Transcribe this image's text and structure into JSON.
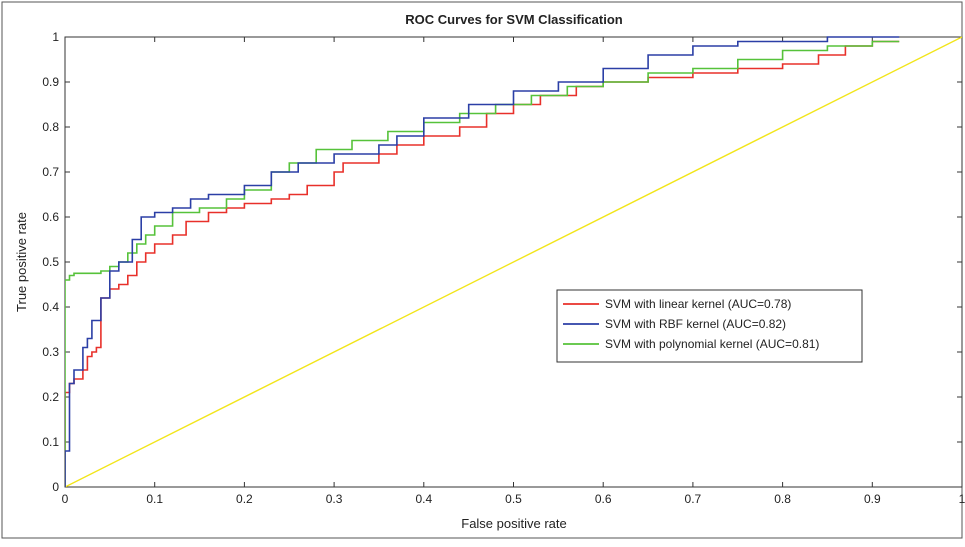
{
  "chart_data": {
    "type": "line",
    "title": "ROC Curves for  SVM Classification",
    "xlabel": "False positive rate",
    "ylabel": "True positive rate",
    "xlim": [
      0,
      1
    ],
    "ylim": [
      0,
      1
    ],
    "xticks": [
      0,
      0.1,
      0.2,
      0.3,
      0.4,
      0.5,
      0.6,
      0.7,
      0.8,
      0.9,
      1
    ],
    "yticks": [
      0,
      0.1,
      0.2,
      0.3,
      0.4,
      0.5,
      0.6,
      0.7,
      0.8,
      0.9,
      1
    ],
    "xtick_labels": [
      "0",
      "0.1",
      "0.2",
      "0.3",
      "0.4",
      "0.5",
      "0.6",
      "0.7",
      "0.8",
      "0.9",
      "1"
    ],
    "ytick_labels": [
      "0",
      "0.1",
      "0.2",
      "0.3",
      "0.4",
      "0.5",
      "0.6",
      "0.7",
      "0.8",
      "0.9",
      "1"
    ],
    "grid": false,
    "legend_position": "center-right",
    "series": [
      {
        "name": "SVM with linear kernel (AUC=0.78)",
        "color": "#e8302a",
        "x": [
          0,
          0,
          0.005,
          0.005,
          0.01,
          0.01,
          0.02,
          0.02,
          0.025,
          0.025,
          0.03,
          0.03,
          0.035,
          0.035,
          0.04,
          0.04,
          0.05,
          0.05,
          0.06,
          0.06,
          0.07,
          0.07,
          0.08,
          0.08,
          0.09,
          0.09,
          0.1,
          0.1,
          0.12,
          0.12,
          0.135,
          0.135,
          0.16,
          0.16,
          0.18,
          0.18,
          0.2,
          0.2,
          0.23,
          0.23,
          0.25,
          0.25,
          0.27,
          0.27,
          0.3,
          0.3,
          0.31,
          0.31,
          0.35,
          0.35,
          0.37,
          0.37,
          0.4,
          0.4,
          0.44,
          0.44,
          0.47,
          0.47,
          0.5,
          0.5,
          0.53,
          0.53,
          0.57,
          0.57,
          0.6,
          0.6,
          0.65,
          0.65,
          0.7,
          0.7,
          0.75,
          0.75,
          0.8,
          0.8,
          0.84,
          0.84,
          0.87,
          0.87,
          0.9,
          0.9,
          0.93
        ],
        "y": [
          0,
          0.21,
          0.21,
          0.23,
          0.23,
          0.24,
          0.24,
          0.26,
          0.26,
          0.29,
          0.29,
          0.3,
          0.3,
          0.31,
          0.31,
          0.42,
          0.42,
          0.44,
          0.44,
          0.45,
          0.45,
          0.47,
          0.47,
          0.5,
          0.5,
          0.52,
          0.52,
          0.54,
          0.54,
          0.56,
          0.56,
          0.59,
          0.59,
          0.61,
          0.61,
          0.62,
          0.62,
          0.63,
          0.63,
          0.64,
          0.64,
          0.65,
          0.65,
          0.67,
          0.67,
          0.7,
          0.7,
          0.72,
          0.72,
          0.74,
          0.74,
          0.76,
          0.76,
          0.78,
          0.78,
          0.8,
          0.8,
          0.83,
          0.83,
          0.85,
          0.85,
          0.87,
          0.87,
          0.89,
          0.89,
          0.9,
          0.9,
          0.91,
          0.91,
          0.92,
          0.92,
          0.93,
          0.93,
          0.94,
          0.94,
          0.96,
          0.96,
          0.98,
          0.98,
          0.99,
          0.99
        ]
      },
      {
        "name": "SVM with RBF kernel (AUC=0.82)",
        "color": "#2b3fa6",
        "x": [
          0,
          0,
          0.005,
          0.005,
          0.01,
          0.01,
          0.02,
          0.02,
          0.025,
          0.025,
          0.03,
          0.03,
          0.04,
          0.04,
          0.05,
          0.05,
          0.06,
          0.06,
          0.075,
          0.075,
          0.085,
          0.085,
          0.1,
          0.1,
          0.12,
          0.12,
          0.14,
          0.14,
          0.16,
          0.16,
          0.2,
          0.2,
          0.23,
          0.23,
          0.26,
          0.26,
          0.3,
          0.3,
          0.35,
          0.35,
          0.37,
          0.37,
          0.4,
          0.4,
          0.45,
          0.45,
          0.5,
          0.5,
          0.55,
          0.55,
          0.6,
          0.6,
          0.65,
          0.65,
          0.7,
          0.7,
          0.75,
          0.75,
          0.8,
          0.8,
          0.85,
          0.85,
          0.88,
          0.88,
          0.93
        ],
        "y": [
          0,
          0.08,
          0.08,
          0.23,
          0.23,
          0.26,
          0.26,
          0.31,
          0.31,
          0.33,
          0.33,
          0.37,
          0.37,
          0.42,
          0.42,
          0.48,
          0.48,
          0.5,
          0.5,
          0.55,
          0.55,
          0.6,
          0.6,
          0.61,
          0.61,
          0.62,
          0.62,
          0.64,
          0.64,
          0.65,
          0.65,
          0.67,
          0.67,
          0.7,
          0.7,
          0.72,
          0.72,
          0.74,
          0.74,
          0.76,
          0.76,
          0.78,
          0.78,
          0.82,
          0.82,
          0.85,
          0.85,
          0.88,
          0.88,
          0.9,
          0.9,
          0.93,
          0.93,
          0.96,
          0.96,
          0.98,
          0.98,
          0.99,
          0.99,
          0.99,
          0.99,
          1.0,
          1.0,
          1.0,
          1.0
        ]
      },
      {
        "name": "SVM with polynomial kernel (AUC=0.81)",
        "color": "#56c23a",
        "x": [
          0,
          0,
          0.005,
          0.005,
          0.01,
          0.01,
          0.04,
          0.04,
          0.05,
          0.05,
          0.06,
          0.06,
          0.07,
          0.07,
          0.08,
          0.08,
          0.09,
          0.09,
          0.1,
          0.1,
          0.12,
          0.12,
          0.15,
          0.15,
          0.18,
          0.18,
          0.2,
          0.2,
          0.23,
          0.23,
          0.25,
          0.25,
          0.28,
          0.28,
          0.32,
          0.32,
          0.36,
          0.36,
          0.4,
          0.4,
          0.44,
          0.44,
          0.48,
          0.48,
          0.52,
          0.52,
          0.56,
          0.56,
          0.6,
          0.6,
          0.65,
          0.65,
          0.7,
          0.7,
          0.75,
          0.75,
          0.8,
          0.8,
          0.85,
          0.85,
          0.9,
          0.9,
          0.93
        ],
        "y": [
          0,
          0.46,
          0.46,
          0.47,
          0.47,
          0.475,
          0.475,
          0.48,
          0.48,
          0.49,
          0.49,
          0.5,
          0.5,
          0.52,
          0.52,
          0.54,
          0.54,
          0.56,
          0.56,
          0.58,
          0.58,
          0.61,
          0.61,
          0.62,
          0.62,
          0.64,
          0.64,
          0.66,
          0.66,
          0.7,
          0.7,
          0.72,
          0.72,
          0.75,
          0.75,
          0.77,
          0.77,
          0.79,
          0.79,
          0.81,
          0.81,
          0.83,
          0.83,
          0.85,
          0.85,
          0.87,
          0.87,
          0.89,
          0.89,
          0.9,
          0.9,
          0.92,
          0.92,
          0.93,
          0.93,
          0.95,
          0.95,
          0.97,
          0.97,
          0.98,
          0.98,
          0.99,
          0.99
        ]
      },
      {
        "name": "",
        "color": "#f2e51a",
        "x": [
          0,
          1
        ],
        "y": [
          0,
          1
        ]
      }
    ]
  }
}
